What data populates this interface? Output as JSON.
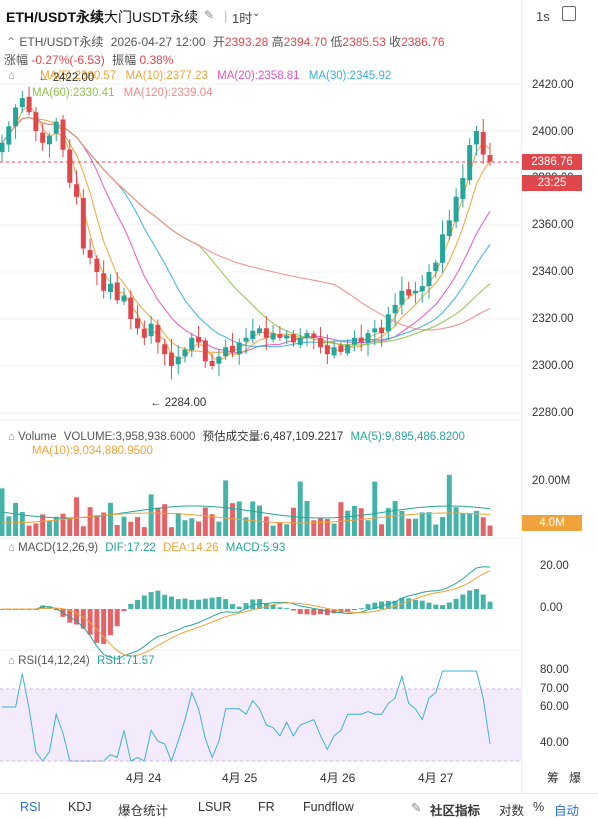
{
  "header": {
    "symbol": "ETH/USDT永续",
    "venue": "大门USDT永续",
    "interval": "1时",
    "interval_right": "1s"
  },
  "ohlc": {
    "symbol": "ETH/USDT永续",
    "date": "2026-04-27 12:00",
    "open_label": "开",
    "open": "2393.28",
    "high_label": "高",
    "high": "2394.70",
    "low_label": "低",
    "low": "2385.53",
    "close_label": "收",
    "close": "2386.76",
    "change_label": "涨幅",
    "change": "-0.27%(-6.53)",
    "amp_label": "振幅",
    "amp": "0.38%"
  },
  "ma_legend": {
    "ma5": "MA(5):2390.57",
    "ma10": "MA(10):2377.23",
    "ma20": "MA(20):2358.81",
    "ma30": "MA(30):2345.92",
    "ma60": "MA(60):2330.41",
    "ma120": "MA(120):2339.04"
  },
  "price_axis": [
    "2420.00",
    "2400.00",
    "2380.00",
    "2360.00",
    "2340.00",
    "2320.00",
    "2300.00",
    "2280.00"
  ],
  "price_marks": {
    "high": "2422.00",
    "low": "2284.00"
  },
  "last_price": "2386.76",
  "countdown": "23:25",
  "volume_legend": {
    "label": "Volume",
    "volume": "VOLUME:3,958,938.6000",
    "est": "预估成交量:6,487,109.2217",
    "ma5": "MA(5):9,895,486.8200",
    "ma10": "MA(10):9,034,880.9500"
  },
  "volume_axis": [
    "20.00M"
  ],
  "volume_tag": "4.0M",
  "macd_legend": {
    "label": "MACD(12,26,9)",
    "dif": "DIF:17.22",
    "dea": "DEA:14.26",
    "macd": "MACD:5.93"
  },
  "macd_axis": [
    "20.00",
    "0.00"
  ],
  "rsi_legend": {
    "label": "RSI(14,12,24)",
    "rsi1": "RSI1:71.57"
  },
  "rsi_axis": [
    "80.00",
    "70.00",
    "60.00",
    "40.00"
  ],
  "dates": [
    "4月 24",
    "4月 25",
    "4月 26",
    "4月 27"
  ],
  "bottom_right": {
    "a": "筹",
    "b": "爆"
  },
  "tabs": [
    "RSI",
    "KDJ",
    "爆仓统计",
    "LSUR",
    "FR",
    "Fundflow"
  ],
  "tabs_right": {
    "community": "社区指标",
    "log": "对数",
    "pct": "%",
    "auto": "自动"
  },
  "colors": {
    "up": "#26a69a",
    "down": "#e0474c",
    "ma5": "#f0a33a",
    "ma10": "#f0a33a",
    "ma20": "#e056c8",
    "ma30": "#3db0d8",
    "ma60": "#8cc34a",
    "ma120": "#f08a8a"
  },
  "chart_data": {
    "type": "candlestick",
    "price_range": [
      2280,
      2420
    ],
    "approx_close_series": [
      2395,
      2402,
      2410,
      2414,
      2408,
      2400,
      2395,
      2398,
      2404,
      2392,
      2378,
      2372,
      2350,
      2346,
      2340,
      2332,
      2335,
      2328,
      2330,
      2320,
      2316,
      2312,
      2318,
      2310,
      2305,
      2300,
      2304,
      2307,
      2312,
      2310,
      2302,
      2300,
      2304,
      2308,
      2306,
      2310,
      2312,
      2315,
      2316,
      2312,
      2314,
      2312,
      2313,
      2310,
      2312,
      2314,
      2312,
      2308,
      2305,
      2308,
      2306,
      2309,
      2312,
      2310,
      2314,
      2316,
      2314,
      2322,
      2326,
      2332,
      2330,
      2332,
      2334,
      2340,
      2344,
      2356,
      2362,
      2372,
      2380,
      2394,
      2400,
      2390,
      2387
    ]
  }
}
